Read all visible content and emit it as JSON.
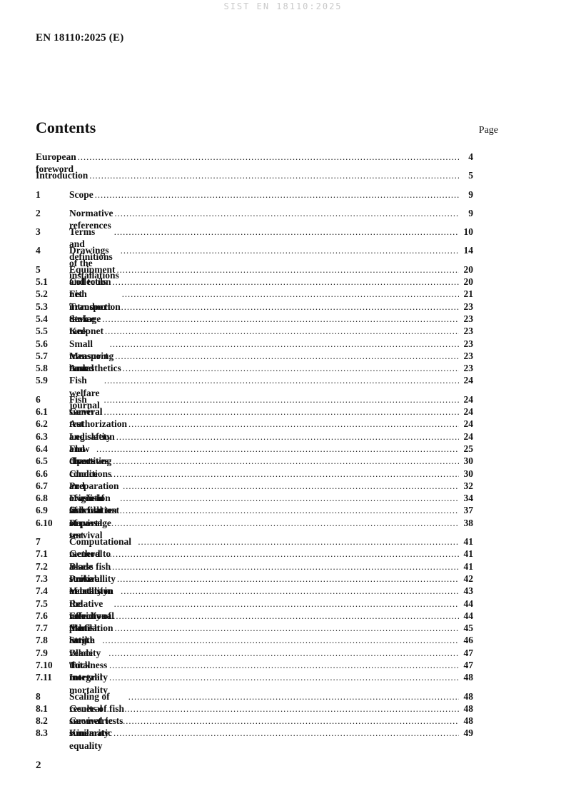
{
  "header": {
    "watermark": "SIST EN 18110:2025",
    "doc_reference": "EN 18110:2025 (E)"
  },
  "toc": {
    "title": "Contents",
    "page_label": "Page",
    "entries": [
      {
        "num": "",
        "label": "European foreword",
        "page": "4"
      },
      {
        "num": "",
        "label": "Introduction",
        "page": "5"
      },
      {
        "num": "1",
        "label": "Scope",
        "page": "9"
      },
      {
        "num": "2",
        "label": "Normative references",
        "page": "9"
      },
      {
        "num": "3",
        "label": "Terms and definitions",
        "page": "10"
      },
      {
        "num": "4",
        "label": "Drawings of the installations",
        "page": "14"
      },
      {
        "num": "5",
        "label": "Equipment and tools",
        "page": "20"
      },
      {
        "num": "5.1",
        "label": "Collection net",
        "page": "20"
      },
      {
        "num": "5.2",
        "label": "Fish introduction device",
        "page": "21"
      },
      {
        "num": "5.3",
        "label": "Transport tank",
        "page": "23"
      },
      {
        "num": "5.4",
        "label": "Storage tank",
        "page": "23"
      },
      {
        "num": "5.5",
        "label": "Keepnet",
        "page": "23"
      },
      {
        "num": "5.6",
        "label": "Small transport tank",
        "page": "23"
      },
      {
        "num": "5.7",
        "label": "Measuring board",
        "page": "23"
      },
      {
        "num": "5.8",
        "label": "Anaesthetics",
        "page": "23"
      },
      {
        "num": "5.9",
        "label": "Fish welfare journal",
        "page": "24"
      },
      {
        "num": "6",
        "label": "Fish survival test",
        "page": "24"
      },
      {
        "num": "6.1",
        "label": "General",
        "page": "24"
      },
      {
        "num": "6.2",
        "label": "Authorization and safety",
        "page": "24"
      },
      {
        "num": "6.3",
        "label": "Legislation and directives",
        "page": "24"
      },
      {
        "num": "6.4",
        "label": "Flow charts",
        "page": "25"
      },
      {
        "num": "6.5",
        "label": "Operating conditions",
        "page": "30"
      },
      {
        "num": "6.6",
        "label": "Choice and origin of fish",
        "page": "30"
      },
      {
        "num": "6.7",
        "label": "Preparation of a fish survival test",
        "page": "32"
      },
      {
        "num": "6.8",
        "label": "Execution of a fish survival test",
        "page": "34"
      },
      {
        "num": "6.9",
        "label": "Calculation of passage survival",
        "page": "37"
      },
      {
        "num": "6.10",
        "label": "Report",
        "page": "38"
      },
      {
        "num": "7",
        "label": "Computational method to assess fish survival",
        "page": "41"
      },
      {
        "num": "7.1",
        "label": "General",
        "page": "41"
      },
      {
        "num": "7.2",
        "label": "Blade strike mortality",
        "page": "41"
      },
      {
        "num": "7.3",
        "label": "Probability of collision",
        "page": "42"
      },
      {
        "num": "7.4",
        "label": "Velocity in the meridional plane",
        "page": "43"
      },
      {
        "num": "7.5",
        "label": "Relative velocity of the fish",
        "page": "44"
      },
      {
        "num": "7.6",
        "label": "Effective fish length",
        "page": "44"
      },
      {
        "num": "7.7",
        "label": "Mutilation ratio",
        "page": "45"
      },
      {
        "num": "7.8",
        "label": "Strike velocity",
        "page": "46"
      },
      {
        "num": "7.9",
        "label": "Blade thickness",
        "page": "47"
      },
      {
        "num": "7.10",
        "label": "Total mortality",
        "page": "47"
      },
      {
        "num": "7.11",
        "label": "Integral mortality",
        "page": "48"
      },
      {
        "num": "8",
        "label": "Scaling of results of fish survival tests",
        "page": "48"
      },
      {
        "num": "8.1",
        "label": "General",
        "page": "48"
      },
      {
        "num": "8.2",
        "label": "Geometric similarity",
        "page": "48"
      },
      {
        "num": "8.3",
        "label": "Kinematic equality",
        "page": "49"
      }
    ]
  },
  "footer": {
    "page_number": "2"
  }
}
